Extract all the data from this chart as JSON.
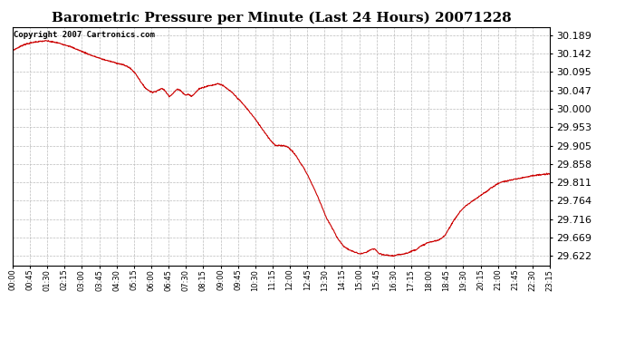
{
  "title": "Barometric Pressure per Minute (Last 24 Hours) 20071228",
  "copyright_text": "Copyright 2007 Cartronics.com",
  "line_color": "#cc0000",
  "background_color": "#ffffff",
  "plot_background": "#ffffff",
  "grid_color": "#bbbbbb",
  "title_fontsize": 11,
  "copyright_fontsize": 6.5,
  "ytick_fontsize": 8,
  "xtick_fontsize": 6,
  "yticks": [
    29.622,
    29.669,
    29.716,
    29.764,
    29.811,
    29.858,
    29.905,
    29.953,
    30.0,
    30.047,
    30.095,
    30.142,
    30.189
  ],
  "ylim": [
    29.598,
    30.21
  ],
  "xlim": [
    0,
    1439
  ],
  "xtick_labels": [
    "00:00",
    "00:45",
    "01:30",
    "02:15",
    "03:00",
    "03:45",
    "04:30",
    "05:15",
    "06:00",
    "06:45",
    "07:30",
    "08:15",
    "09:00",
    "09:45",
    "10:30",
    "11:15",
    "12:00",
    "12:45",
    "13:30",
    "14:15",
    "15:00",
    "15:45",
    "16:30",
    "17:15",
    "18:00",
    "18:45",
    "19:30",
    "20:15",
    "21:00",
    "21:45",
    "22:30",
    "23:15"
  ],
  "ctrl_points": [
    [
      0,
      30.15
    ],
    [
      30,
      30.165
    ],
    [
      60,
      30.172
    ],
    [
      90,
      30.175
    ],
    [
      120,
      30.17
    ],
    [
      150,
      30.162
    ],
    [
      180,
      30.15
    ],
    [
      210,
      30.138
    ],
    [
      240,
      30.128
    ],
    [
      270,
      30.12
    ],
    [
      290,
      30.115
    ],
    [
      300,
      30.112
    ],
    [
      310,
      30.108
    ],
    [
      320,
      30.1
    ],
    [
      330,
      30.09
    ],
    [
      340,
      30.075
    ],
    [
      350,
      30.06
    ],
    [
      360,
      30.05
    ],
    [
      375,
      30.042
    ],
    [
      390,
      30.048
    ],
    [
      400,
      30.052
    ],
    [
      405,
      30.05
    ],
    [
      415,
      30.038
    ],
    [
      420,
      30.032
    ],
    [
      430,
      30.04
    ],
    [
      440,
      30.05
    ],
    [
      450,
      30.048
    ],
    [
      455,
      30.042
    ],
    [
      460,
      30.038
    ],
    [
      465,
      30.035
    ],
    [
      470,
      30.038
    ],
    [
      480,
      30.032
    ],
    [
      490,
      30.042
    ],
    [
      500,
      30.052
    ],
    [
      510,
      30.055
    ],
    [
      520,
      30.058
    ],
    [
      530,
      30.06
    ],
    [
      540,
      30.062
    ],
    [
      550,
      30.065
    ],
    [
      560,
      30.062
    ],
    [
      570,
      30.055
    ],
    [
      580,
      30.048
    ],
    [
      590,
      30.04
    ],
    [
      600,
      30.03
    ],
    [
      615,
      30.015
    ],
    [
      630,
      29.998
    ],
    [
      645,
      29.98
    ],
    [
      660,
      29.96
    ],
    [
      675,
      29.94
    ],
    [
      690,
      29.92
    ],
    [
      705,
      29.905
    ],
    [
      720,
      29.906
    ],
    [
      730,
      29.905
    ],
    [
      740,
      29.9
    ],
    [
      750,
      29.89
    ],
    [
      760,
      29.878
    ],
    [
      770,
      29.862
    ],
    [
      780,
      29.848
    ],
    [
      790,
      29.83
    ],
    [
      800,
      29.81
    ],
    [
      810,
      29.79
    ],
    [
      820,
      29.768
    ],
    [
      830,
      29.745
    ],
    [
      840,
      29.72
    ],
    [
      855,
      29.695
    ],
    [
      870,
      29.668
    ],
    [
      885,
      29.648
    ],
    [
      900,
      29.638
    ],
    [
      915,
      29.632
    ],
    [
      930,
      29.627
    ],
    [
      945,
      29.63
    ],
    [
      960,
      29.638
    ],
    [
      970,
      29.64
    ],
    [
      975,
      29.635
    ],
    [
      980,
      29.628
    ],
    [
      990,
      29.625
    ],
    [
      1000,
      29.624
    ],
    [
      1010,
      29.623
    ],
    [
      1020,
      29.622
    ],
    [
      1030,
      29.624
    ],
    [
      1040,
      29.626
    ],
    [
      1050,
      29.628
    ],
    [
      1060,
      29.63
    ],
    [
      1070,
      29.635
    ],
    [
      1080,
      29.638
    ],
    [
      1090,
      29.645
    ],
    [
      1100,
      29.65
    ],
    [
      1110,
      29.655
    ],
    [
      1120,
      29.658
    ],
    [
      1130,
      29.66
    ],
    [
      1140,
      29.662
    ],
    [
      1150,
      29.668
    ],
    [
      1160,
      29.678
    ],
    [
      1170,
      29.695
    ],
    [
      1185,
      29.718
    ],
    [
      1200,
      29.738
    ],
    [
      1215,
      29.752
    ],
    [
      1225,
      29.758
    ],
    [
      1230,
      29.762
    ],
    [
      1240,
      29.768
    ],
    [
      1250,
      29.775
    ],
    [
      1260,
      29.782
    ],
    [
      1270,
      29.788
    ],
    [
      1280,
      29.796
    ],
    [
      1290,
      29.802
    ],
    [
      1300,
      29.808
    ],
    [
      1310,
      29.812
    ],
    [
      1320,
      29.814
    ],
    [
      1330,
      29.816
    ],
    [
      1340,
      29.818
    ],
    [
      1350,
      29.82
    ],
    [
      1360,
      29.822
    ],
    [
      1370,
      29.824
    ],
    [
      1380,
      29.826
    ],
    [
      1390,
      29.828
    ],
    [
      1400,
      29.829
    ],
    [
      1410,
      29.83
    ],
    [
      1420,
      29.831
    ],
    [
      1430,
      29.832
    ],
    [
      1439,
      29.833
    ]
  ]
}
